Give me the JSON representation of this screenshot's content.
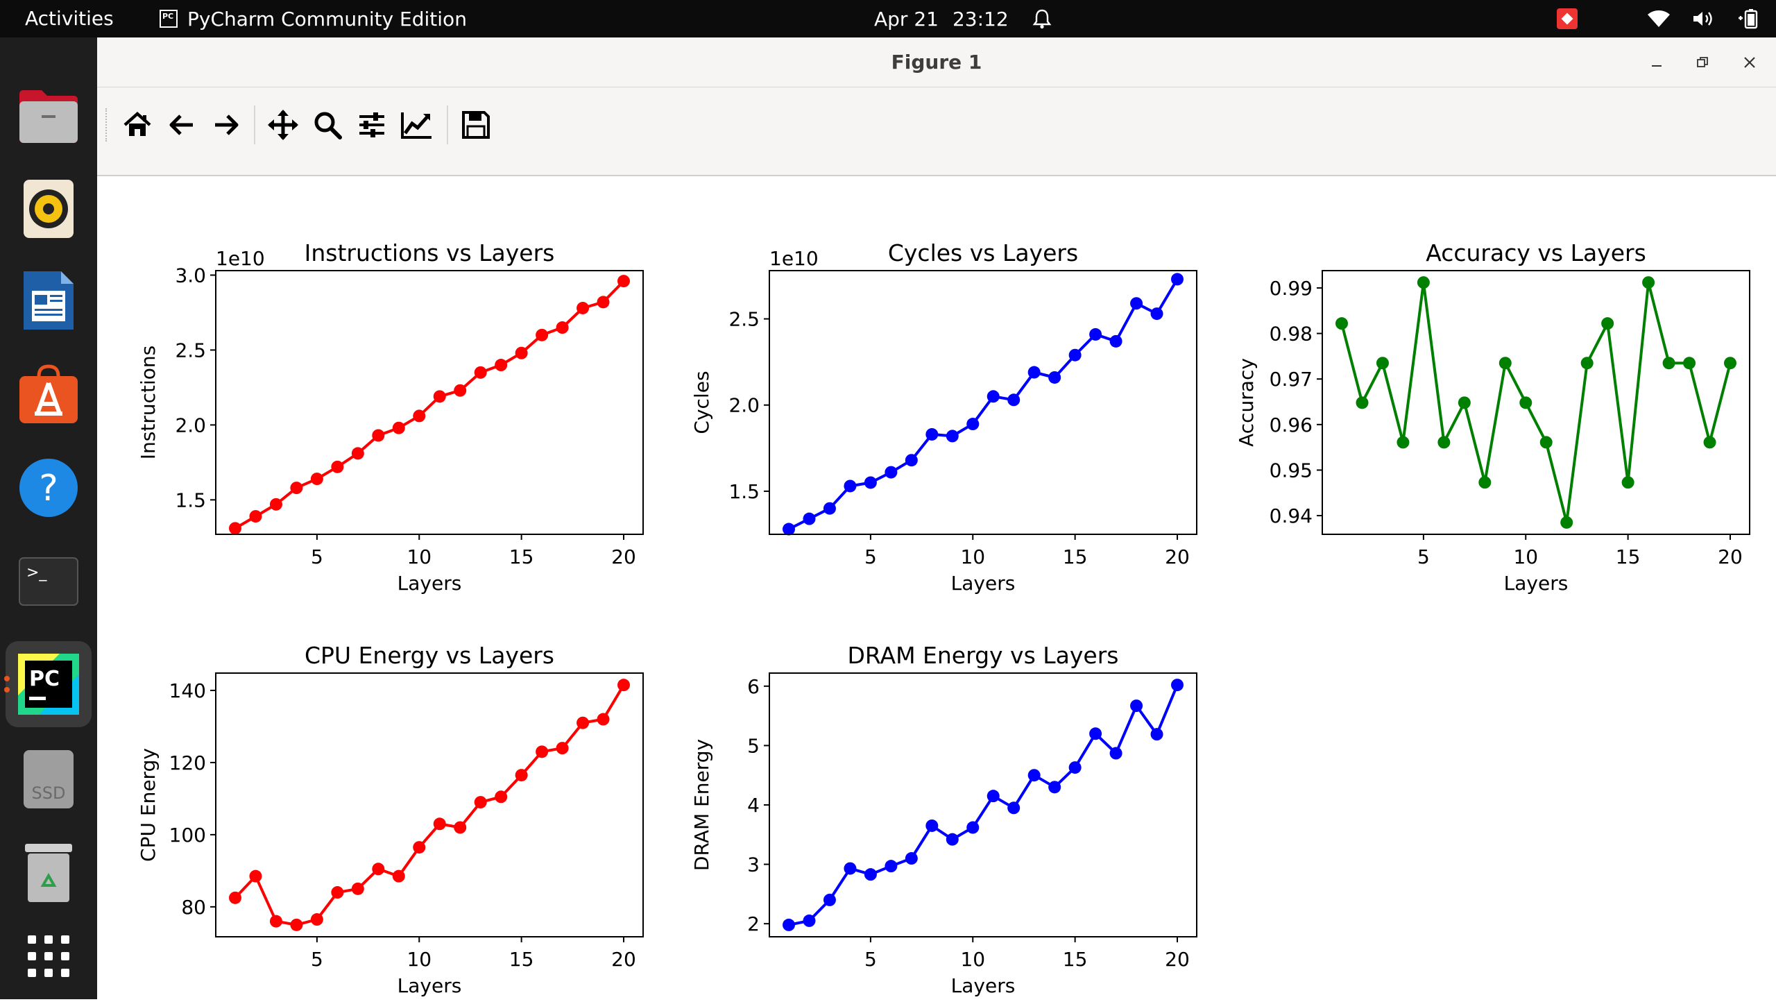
{
  "topbar": {
    "activities": "Activities",
    "app_name": "PyCharm Community Edition",
    "app_mini_icon": "PC",
    "date": "Apr 21",
    "time": "23:12",
    "icons": [
      "bell-icon",
      "red-app-icon",
      "wifi-icon",
      "volume-icon",
      "battery-icon"
    ]
  },
  "dock": {
    "items": [
      {
        "name": "files",
        "icon": "folder-icon"
      },
      {
        "name": "rhythmbox",
        "icon": "speaker-icon"
      },
      {
        "name": "libreoffice-writer",
        "icon": "document-icon"
      },
      {
        "name": "app-center",
        "icon": "store-icon"
      },
      {
        "name": "help",
        "icon": "help-icon",
        "label": "?"
      },
      {
        "name": "terminal",
        "icon": "terminal-icon",
        "label": ">_"
      },
      {
        "name": "pycharm",
        "icon": "pycharm-icon",
        "label": "PC",
        "active": true
      },
      {
        "name": "ssd-drive",
        "icon": "drive-icon",
        "label": "SSD"
      },
      {
        "name": "trash",
        "icon": "trash-icon"
      },
      {
        "name": "show-apps",
        "icon": "grid-icon"
      }
    ]
  },
  "window": {
    "title": "Figure 1",
    "toolbar": [
      "home-icon",
      "back-icon",
      "forward-icon",
      "pan-icon",
      "zoom-icon",
      "configure-icon",
      "edit-curve-icon",
      "save-icon"
    ]
  },
  "chart_data": [
    {
      "type": "line",
      "title": "Instructions vs Layers",
      "xlabel": "Layers",
      "ylabel": "Instructions",
      "offset_text": "1e10",
      "color": "#ff0000",
      "x": [
        1,
        2,
        3,
        4,
        5,
        6,
        7,
        8,
        9,
        10,
        11,
        12,
        13,
        14,
        15,
        16,
        17,
        18,
        19,
        20
      ],
      "y": [
        1.31,
        1.39,
        1.47,
        1.58,
        1.64,
        1.72,
        1.81,
        1.93,
        1.98,
        2.06,
        2.19,
        2.23,
        2.35,
        2.4,
        2.48,
        2.6,
        2.65,
        2.78,
        2.82,
        2.96
      ],
      "xlim": [
        0.05,
        20.95
      ],
      "ylim": [
        1.27,
        3.03
      ],
      "xticks": [
        5,
        10,
        15,
        20
      ],
      "yticks": [
        1.5,
        2.0,
        2.5,
        3.0
      ],
      "yticklabels": [
        "1.5",
        "2.0",
        "2.5",
        "3.0"
      ]
    },
    {
      "type": "line",
      "title": "Cycles vs Layers",
      "xlabel": "Layers",
      "ylabel": "Cycles",
      "offset_text": "1e10",
      "color": "#0000ff",
      "x": [
        1,
        2,
        3,
        4,
        5,
        6,
        7,
        8,
        9,
        10,
        11,
        12,
        13,
        14,
        15,
        16,
        17,
        18,
        19,
        20
      ],
      "y": [
        1.28,
        1.34,
        1.4,
        1.53,
        1.55,
        1.61,
        1.68,
        1.83,
        1.82,
        1.89,
        2.05,
        2.03,
        2.19,
        2.16,
        2.29,
        2.41,
        2.37,
        2.59,
        2.53,
        2.73
      ],
      "xlim": [
        0.05,
        20.95
      ],
      "ylim": [
        1.25,
        2.78
      ],
      "xticks": [
        5,
        10,
        15,
        20
      ],
      "yticks": [
        1.5,
        2.0,
        2.5
      ],
      "yticklabels": [
        "1.5",
        "2.0",
        "2.5"
      ]
    },
    {
      "type": "line",
      "title": "Accuracy vs Layers",
      "xlabel": "Layers",
      "ylabel": "Accuracy",
      "color": "#008000",
      "x": [
        1,
        2,
        3,
        4,
        5,
        6,
        7,
        8,
        9,
        10,
        11,
        12,
        13,
        14,
        15,
        16,
        17,
        18,
        19,
        20
      ],
      "y": [
        0.9822,
        0.9648,
        0.9735,
        0.9561,
        0.9912,
        0.9561,
        0.9648,
        0.9473,
        0.9735,
        0.9648,
        0.9561,
        0.9385,
        0.9735,
        0.9822,
        0.9473,
        0.9912,
        0.9735,
        0.9735,
        0.9561,
        0.9735
      ],
      "xlim": [
        0.05,
        20.95
      ],
      "ylim": [
        0.9359,
        0.9938
      ],
      "xticks": [
        5,
        10,
        15,
        20
      ],
      "yticks": [
        0.94,
        0.95,
        0.96,
        0.97,
        0.98,
        0.99
      ],
      "yticklabels": [
        "0.94",
        "0.95",
        "0.96",
        "0.97",
        "0.98",
        "0.99"
      ]
    },
    {
      "type": "line",
      "title": "CPU Energy vs Layers",
      "xlabel": "Layers",
      "ylabel": "CPU Energy",
      "color": "#ff0000",
      "x": [
        1,
        2,
        3,
        4,
        5,
        6,
        7,
        8,
        9,
        10,
        11,
        12,
        13,
        14,
        15,
        16,
        17,
        18,
        19,
        20
      ],
      "y": [
        82.5,
        88.5,
        76.0,
        75.0,
        76.5,
        84.0,
        85.0,
        90.5,
        88.5,
        96.5,
        103.0,
        102.0,
        109.0,
        110.5,
        116.5,
        123.0,
        124.0,
        131.0,
        132.0,
        141.5
      ],
      "xlim": [
        0.05,
        20.95
      ],
      "ylim": [
        71.7,
        144.8
      ],
      "xticks": [
        5,
        10,
        15,
        20
      ],
      "yticks": [
        80,
        100,
        120,
        140
      ],
      "yticklabels": [
        "80",
        "100",
        "120",
        "140"
      ]
    },
    {
      "type": "line",
      "title": "DRAM Energy vs Layers",
      "xlabel": "Layers",
      "ylabel": "DRAM Energy",
      "color": "#0000ff",
      "x": [
        1,
        2,
        3,
        4,
        5,
        6,
        7,
        8,
        9,
        10,
        11,
        12,
        13,
        14,
        15,
        16,
        17,
        18,
        19,
        20
      ],
      "y": [
        1.98,
        2.05,
        2.4,
        2.93,
        2.83,
        2.97,
        3.1,
        3.65,
        3.42,
        3.62,
        4.15,
        3.95,
        4.5,
        4.3,
        4.63,
        5.2,
        4.87,
        5.67,
        5.19,
        6.02
      ],
      "xlim": [
        0.05,
        20.95
      ],
      "ylim": [
        1.78,
        6.22
      ],
      "xticks": [
        5,
        10,
        15,
        20
      ],
      "yticks": [
        2,
        3,
        4,
        5,
        6
      ],
      "yticklabels": [
        "2",
        "3",
        "4",
        "5",
        "6"
      ]
    }
  ]
}
